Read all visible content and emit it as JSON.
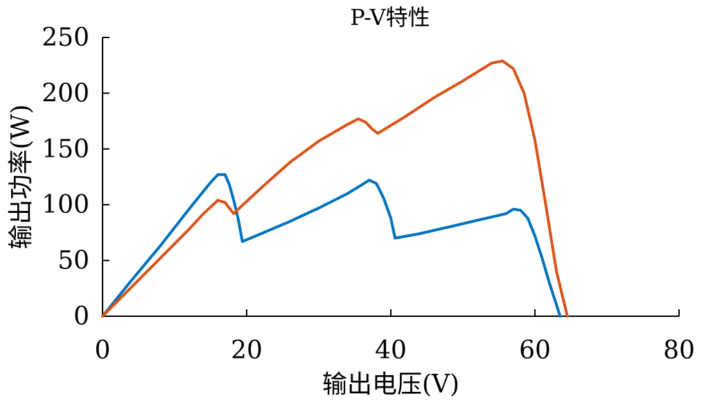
{
  "chart_data": {
    "type": "line",
    "title": "P-V特性",
    "xlabel": "输出电压(V)",
    "ylabel": "输出功率(W)",
    "xlim": [
      0,
      80
    ],
    "ylim": [
      0,
      250
    ],
    "xticks": [
      "0",
      "20",
      "40",
      "60",
      "80"
    ],
    "yticks": [
      "0",
      "50",
      "100",
      "150",
      "200",
      "250"
    ],
    "grid": false,
    "series": [
      {
        "color": "#0072BD",
        "x": [
          0,
          4,
          8,
          12,
          14,
          15,
          16,
          17,
          17.6,
          18.2,
          18.8,
          19.4,
          22,
          26,
          30,
          34,
          36,
          37,
          38,
          39,
          40,
          40.6,
          44,
          48,
          52,
          56,
          57,
          58,
          59,
          60,
          61,
          62,
          63.5
        ],
        "y": [
          0,
          32,
          63,
          96,
          112,
          120,
          127,
          127,
          118,
          104,
          88,
          67,
          74,
          85,
          97,
          110,
          118,
          122,
          119,
          106,
          88,
          70,
          74,
          80,
          86,
          92,
          96,
          95,
          88,
          72,
          52,
          30,
          0
        ]
      },
      {
        "color": "#D95319",
        "x": [
          0,
          4,
          8,
          12,
          14,
          16,
          17,
          17.6,
          18.2,
          19,
          22,
          26,
          30,
          34,
          35.5,
          36.5,
          37.4,
          38.2,
          42,
          46,
          50,
          54,
          55.5,
          57,
          58.5,
          60,
          61.5,
          63,
          64.5
        ],
        "y": [
          0,
          26,
          52,
          78,
          92,
          104,
          102,
          97,
          92,
          97,
          115,
          138,
          157,
          172,
          177,
          174,
          168,
          164,
          179,
          196,
          211,
          227,
          229,
          222,
          200,
          158,
          100,
          40,
          0
        ]
      }
    ]
  }
}
